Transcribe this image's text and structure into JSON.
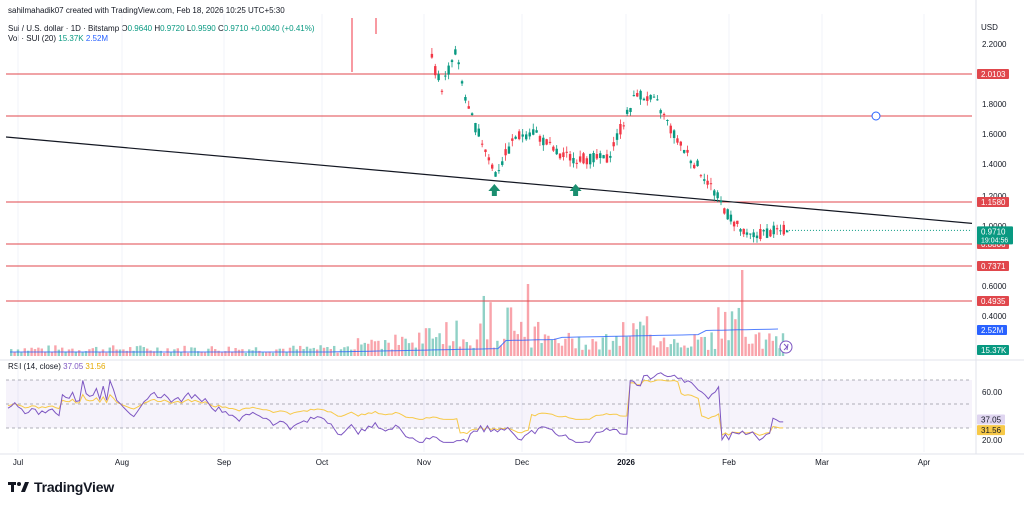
{
  "header": {
    "credit": "sahilmahadik07 created with TradingView.com, Feb 18, 2026 10:25 UTC+5:30",
    "symbol_line": "Sui / U.S. dollar · 1D · Bitstamp",
    "open_label": "O",
    "open": "0.9640",
    "high_label": "H",
    "high": "0.9720",
    "low_label": "L",
    "low": "0.9590",
    "close_label": "C",
    "close": "0.9710",
    "change": "+0.0040 (+0.41%)",
    "vol_label": "Vol · SUI (20)",
    "vol_value": "15.37K",
    "vol_ma": "2.52M",
    "rsi_label": "RSI (14, close)",
    "rsi_value": "37.05",
    "rsi_ma": "31.56"
  },
  "watermark": {
    "text": "TradingView",
    "icon": "tradingview-logo-icon"
  },
  "colors": {
    "up": "#089981",
    "down": "#f23645",
    "level": "#e0474c",
    "trend": "#131722",
    "rsi": "#7e57c2",
    "rsi_ma": "#f7c948",
    "vol_ma": "#2962ff",
    "grid": "#f0f3fa",
    "text": "#131722",
    "price_badge": "#089981",
    "vol_badge": "#2962ff",
    "rsi_ma_badge": "#f7c948",
    "rsi_badge": "#7e57c2"
  },
  "chart_data": {
    "type": "candlestick",
    "currency": "USD",
    "x_ticks": [
      "Jul",
      "Aug",
      "Sep",
      "Oct",
      "Nov",
      "Dec",
      "2026",
      "Feb",
      "Mar",
      "Apr"
    ],
    "y_ticks": [
      "2.2000",
      "1.8000",
      "1.6000",
      "1.4000",
      "1.2000",
      "1.0000",
      "0.6000",
      "0.4000"
    ],
    "ylim": [
      0.4,
      2.3
    ],
    "resistance_support_levels": [
      "2.0103",
      "1.1580",
      "0.8806",
      "0.7371",
      "0.4935"
    ],
    "level_values": [
      2.0103,
      1.158,
      0.8806,
      0.7371,
      0.4935
    ],
    "horizontal_line_unlabeled": 1.72,
    "trendline": {
      "start": [
        "Jun 26",
        1.58
      ],
      "end": [
        "Feb 25",
        1.07
      ]
    },
    "last_price": "0.9710",
    "countdown": "19:04:56",
    "bounce_markers": [
      "Nov 22",
      "Dec 17"
    ],
    "candles_ohlc_sample": [
      {
        "date": "Nov 3",
        "o": 2.22,
        "h": 2.25,
        "l": 2.05,
        "c": 2.1
      },
      {
        "date": "Nov 6",
        "o": 2.05,
        "h": 2.08,
        "l": 1.86,
        "c": 1.92
      },
      {
        "date": "Nov 10",
        "o": 2.1,
        "h": 2.18,
        "l": 2.02,
        "c": 2.15
      },
      {
        "date": "Nov 14",
        "o": 1.9,
        "h": 1.95,
        "l": 1.7,
        "c": 1.75
      },
      {
        "date": "Nov 18",
        "o": 1.62,
        "h": 1.65,
        "l": 1.5,
        "c": 1.55
      },
      {
        "date": "Nov 22",
        "o": 1.4,
        "h": 1.42,
        "l": 1.31,
        "c": 1.34
      },
      {
        "date": "Nov 28",
        "o": 1.5,
        "h": 1.6,
        "l": 1.46,
        "c": 1.58
      },
      {
        "date": "Dec 4",
        "o": 1.66,
        "h": 1.72,
        "l": 1.58,
        "c": 1.62
      },
      {
        "date": "Dec 12",
        "o": 1.54,
        "h": 1.58,
        "l": 1.42,
        "c": 1.45
      },
      {
        "date": "Dec 18",
        "o": 1.34,
        "h": 1.46,
        "l": 1.32,
        "c": 1.44
      },
      {
        "date": "Dec 26",
        "o": 1.46,
        "h": 1.5,
        "l": 1.4,
        "c": 1.43
      },
      {
        "date": "Jan 4",
        "o": 1.72,
        "h": 1.92,
        "l": 1.7,
        "c": 1.88
      },
      {
        "date": "Jan 10",
        "o": 1.82,
        "h": 1.92,
        "l": 1.76,
        "c": 1.8
      },
      {
        "date": "Jan 16",
        "o": 1.74,
        "h": 1.78,
        "l": 1.52,
        "c": 1.55
      },
      {
        "date": "Jan 24",
        "o": 1.42,
        "h": 1.45,
        "l": 1.3,
        "c": 1.33
      },
      {
        "date": "Jan 31",
        "o": 1.16,
        "h": 1.18,
        "l": 1.05,
        "c": 1.08
      },
      {
        "date": "Feb 6",
        "o": 0.98,
        "h": 1.0,
        "l": 0.8,
        "c": 0.92
      },
      {
        "date": "Feb 12",
        "o": 0.92,
        "h": 0.99,
        "l": 0.9,
        "c": 0.96
      },
      {
        "date": "Feb 18",
        "o": 0.964,
        "h": 0.972,
        "l": 0.959,
        "c": 0.971
      }
    ],
    "rsi": {
      "ticks": [
        "60.00",
        "20.00"
      ],
      "ylim": [
        10,
        85
      ],
      "bands": [
        70,
        30
      ],
      "last": "37.05",
      "ma_last": "31.56"
    },
    "volume": {
      "last": "15.37K",
      "ma_last": "2.52M"
    }
  }
}
